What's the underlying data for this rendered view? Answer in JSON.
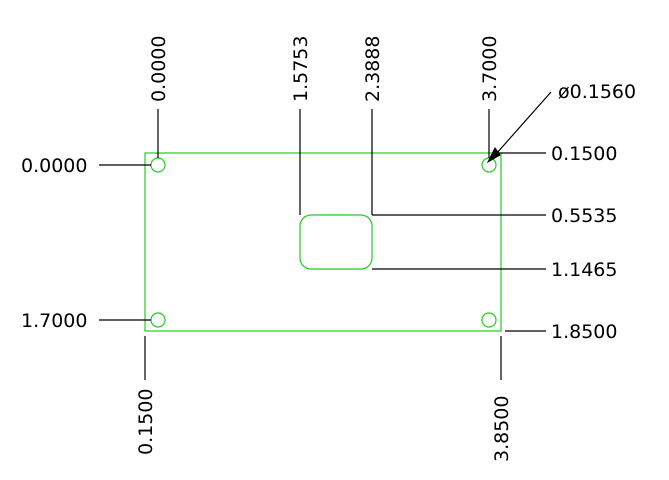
{
  "colors": {
    "geometry": "#22cc22",
    "dimension": "#000000",
    "background": "#ffffff"
  },
  "labels": {
    "left_top": "0.0000",
    "left_bottom": "1.7000",
    "right_top": "0.1500",
    "right_slot_top": "0.5535",
    "right_slot_bottom": "1.1465",
    "right_bottom": "1.8500",
    "top_left": "0.0000",
    "top_slot_left": "1.5753",
    "top_slot_right": "2.3888",
    "top_right": "3.7000",
    "bottom_left": "0.1500",
    "bottom_right": "3.8500",
    "diameter": "ø0.1560"
  }
}
